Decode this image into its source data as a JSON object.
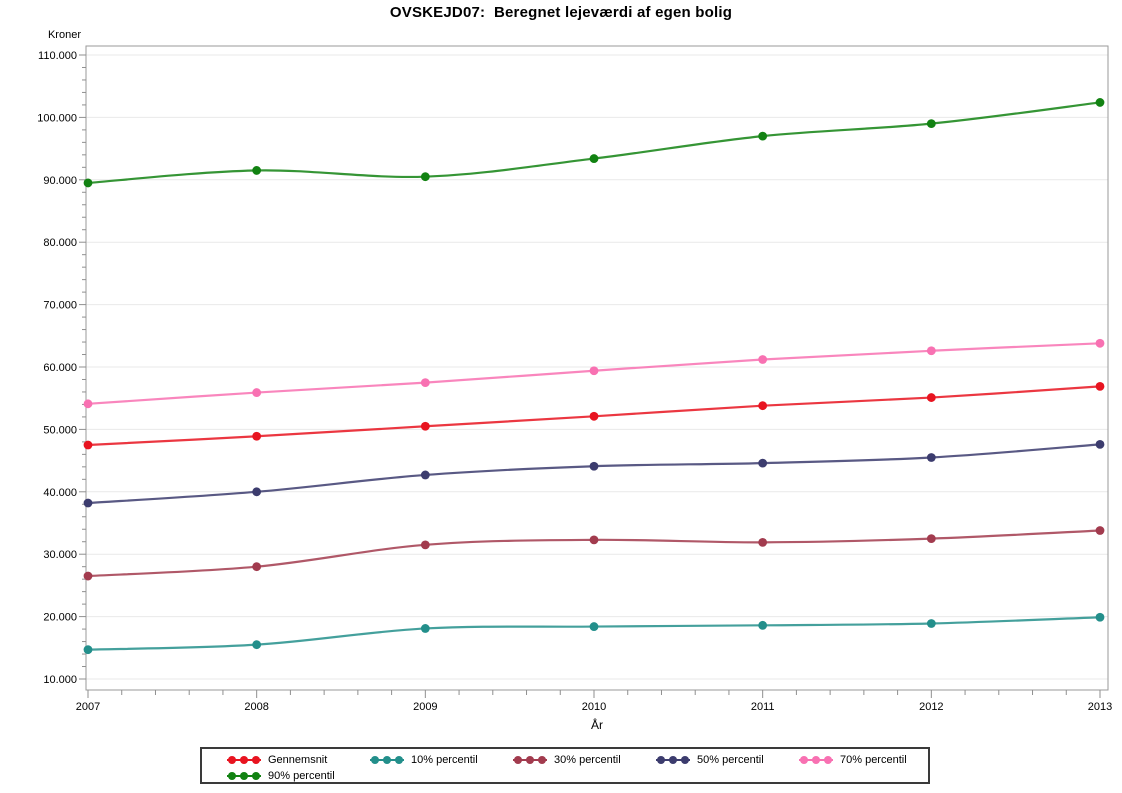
{
  "title": "OVSKEJD07:  Beregnet lejeværdi af egen bolig",
  "chart_data": {
    "type": "line",
    "title": "OVSKEJD07:  Beregnet lejeværdi af egen bolig",
    "xlabel": "År",
    "ylabel": "Kroner",
    "x": [
      2007,
      2008,
      2009,
      2010,
      2011,
      2012,
      2013
    ],
    "x_tick_labels": [
      "2007",
      "2008",
      "2009",
      "2010",
      "2011",
      "2012",
      "2013"
    ],
    "ylim": [
      10000,
      110000
    ],
    "y_tick_step": 10000,
    "y_tick_labels": [
      "10.000",
      "20.000",
      "30.000",
      "40.000",
      "50.000",
      "60.000",
      "70.000",
      "80.000",
      "90.000",
      "100.000",
      "110.000"
    ],
    "grid": "horizontal",
    "legend_position": "bottom",
    "line_style": "smooth",
    "series": [
      {
        "name": "Gennemsnit",
        "color": "#e81420",
        "values": [
          47500,
          48900,
          50500,
          52100,
          53800,
          55100,
          56900
        ]
      },
      {
        "name": "10% percentil",
        "color": "#238f8b",
        "values": [
          14700,
          15500,
          18100,
          18400,
          18600,
          18900,
          19900
        ]
      },
      {
        "name": "30% percentil",
        "color": "#a23b4e",
        "values": [
          26500,
          28000,
          31500,
          32300,
          31900,
          32500,
          33800
        ]
      },
      {
        "name": "50% percentil",
        "color": "#3c3c6e",
        "values": [
          38200,
          40000,
          42700,
          44100,
          44600,
          45500,
          47600
        ]
      },
      {
        "name": "70% percentil",
        "color": "#f871b2",
        "values": [
          54100,
          55900,
          57500,
          59400,
          61200,
          62600,
          63800
        ]
      },
      {
        "name": "90% percentil",
        "color": "#128212",
        "values": [
          89500,
          91500,
          90500,
          93400,
          97000,
          99000,
          102400
        ]
      }
    ]
  },
  "colors": {
    "background": "#ffffff",
    "axis_line": "#8f8f8f",
    "plot_border": "#9a9a9a",
    "gridline": "#e9e9e9",
    "text": "#000000",
    "legend_border": "#3a3a3a"
  }
}
